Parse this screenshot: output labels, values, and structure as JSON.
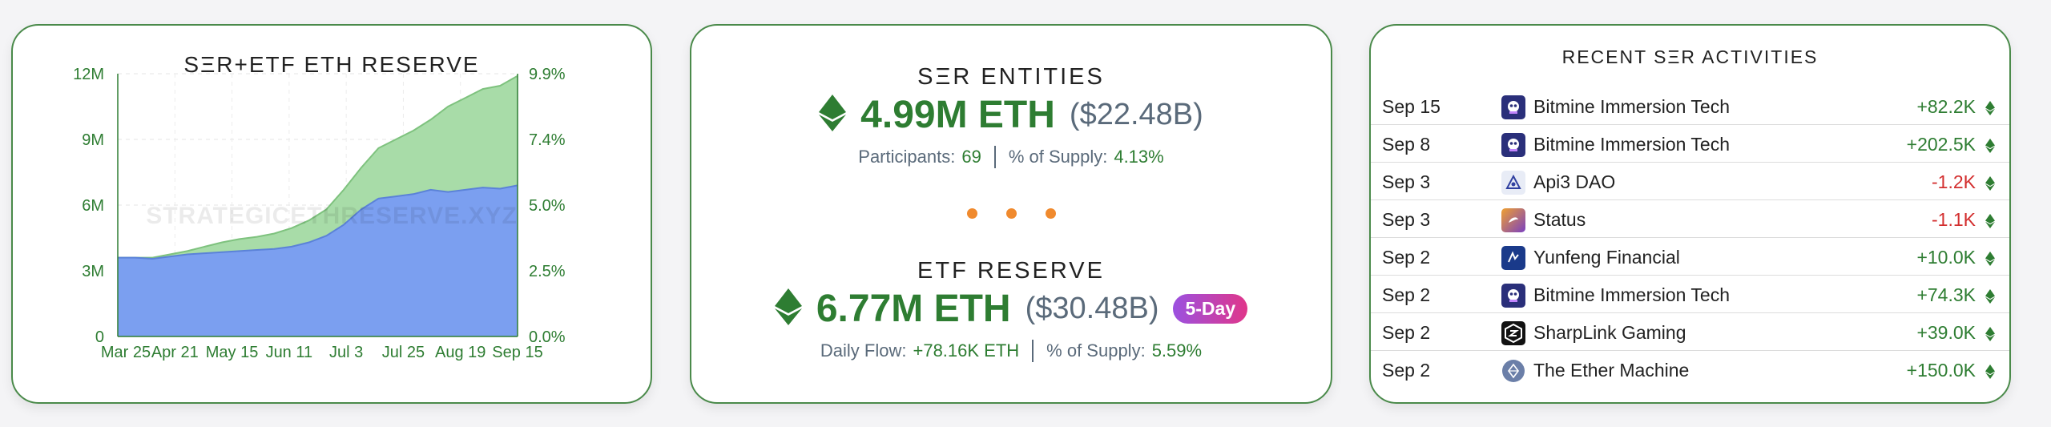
{
  "chart_card": {
    "watermark": "STRATEGICETHRESERVE.XYZ"
  },
  "chart_data": {
    "type": "area",
    "title": "SΞR+ETF ETH RESERVE",
    "xlabel": "",
    "ylabel": "",
    "x_ticks": [
      "Mar 25",
      "Apr 21",
      "May 15",
      "Jun 11",
      "Jul 3",
      "Jul 25",
      "Aug 19",
      "Sep 15"
    ],
    "y_ticks_left": [
      "12M",
      "9M",
      "6M",
      "3M",
      "0"
    ],
    "y_ticks_right": [
      "9.9%",
      "7.4%",
      "5.0%",
      "2.5%",
      "0.0%"
    ],
    "ylim": [
      0,
      12000000
    ],
    "stacked": true,
    "grid": true,
    "x": [
      "Mar 25",
      "Apr 3",
      "Apr 12",
      "Apr 21",
      "Apr 30",
      "May 8",
      "May 15",
      "May 24",
      "Jun 2",
      "Jun 11",
      "Jun 18",
      "Jun 26",
      "Jul 3",
      "Jul 10",
      "Jul 17",
      "Jul 25",
      "Aug 1",
      "Aug 8",
      "Aug 13",
      "Aug 19",
      "Aug 26",
      "Sep 1",
      "Sep 8",
      "Sep 15"
    ],
    "series": [
      {
        "values": [
          3.6,
          3.6,
          3.55,
          3.65,
          3.75,
          3.8,
          3.85,
          3.9,
          3.95,
          4.0,
          4.1,
          4.3,
          4.6,
          5.1,
          5.8,
          6.3,
          6.4,
          6.5,
          6.7,
          6.6,
          6.7,
          6.8,
          6.75,
          6.9
        ],
        "color": "#7b9ff0"
      },
      {
        "values": [
          0.0,
          0.0,
          0.05,
          0.1,
          0.15,
          0.3,
          0.45,
          0.55,
          0.6,
          0.7,
          0.85,
          1.0,
          1.2,
          1.6,
          1.9,
          2.3,
          2.6,
          2.9,
          3.2,
          3.9,
          4.2,
          4.5,
          4.7,
          5.0
        ],
        "color": "#a8dca8"
      }
    ],
    "unit": "M ETH"
  },
  "entities": {
    "title": "SΞR ENTITIES",
    "eth_value": "4.99M ETH",
    "usd_value": "($22.48B)",
    "participants_label": "Participants:",
    "participants_value": "69",
    "supply_label": "% of Supply:",
    "supply_value": "4.13%"
  },
  "etf": {
    "title": "ETF RESERVE",
    "eth_value": "6.77M ETH",
    "usd_value": "($30.48B)",
    "badge": "5-Day",
    "flow_label": "Daily Flow:",
    "flow_value": "+78.16K ETH",
    "supply_label": "% of Supply:",
    "supply_value": "5.59%"
  },
  "activities": {
    "title": "RECENT SΞR ACTIVITIES",
    "rows": [
      {
        "date": "Sep 15",
        "name": "Bitmine Immersion Tech",
        "amount": "+82.2K",
        "sign": "pos",
        "logo": "bitmine-logo"
      },
      {
        "date": "Sep 8",
        "name": "Bitmine Immersion Tech",
        "amount": "+202.5K",
        "sign": "pos",
        "logo": "bitmine-logo"
      },
      {
        "date": "Sep 3",
        "name": "Api3 DAO",
        "amount": "-1.2K",
        "sign": "neg",
        "logo": "api3-logo"
      },
      {
        "date": "Sep 3",
        "name": "Status",
        "amount": "-1.1K",
        "sign": "neg",
        "logo": "status-logo"
      },
      {
        "date": "Sep 2",
        "name": "Yunfeng Financial",
        "amount": "+10.0K",
        "sign": "pos",
        "logo": "yunfeng-logo"
      },
      {
        "date": "Sep 2",
        "name": "Bitmine Immersion Tech",
        "amount": "+74.3K",
        "sign": "pos",
        "logo": "bitmine-logo"
      },
      {
        "date": "Sep 2",
        "name": "SharpLink Gaming",
        "amount": "+39.0K",
        "sign": "pos",
        "logo": "sharplink-logo"
      },
      {
        "date": "Sep 2",
        "name": "The Ether Machine",
        "amount": "+150.0K",
        "sign": "pos",
        "logo": "ether-machine-logo"
      }
    ]
  },
  "colors": {
    "accent_green": "#2e7d32",
    "negative_red": "#d32f2f",
    "card_border": "#4a8a4a",
    "area_blue": "#7b9ff0",
    "area_green": "#a8dca8",
    "dots_orange": "#f08a2e"
  }
}
